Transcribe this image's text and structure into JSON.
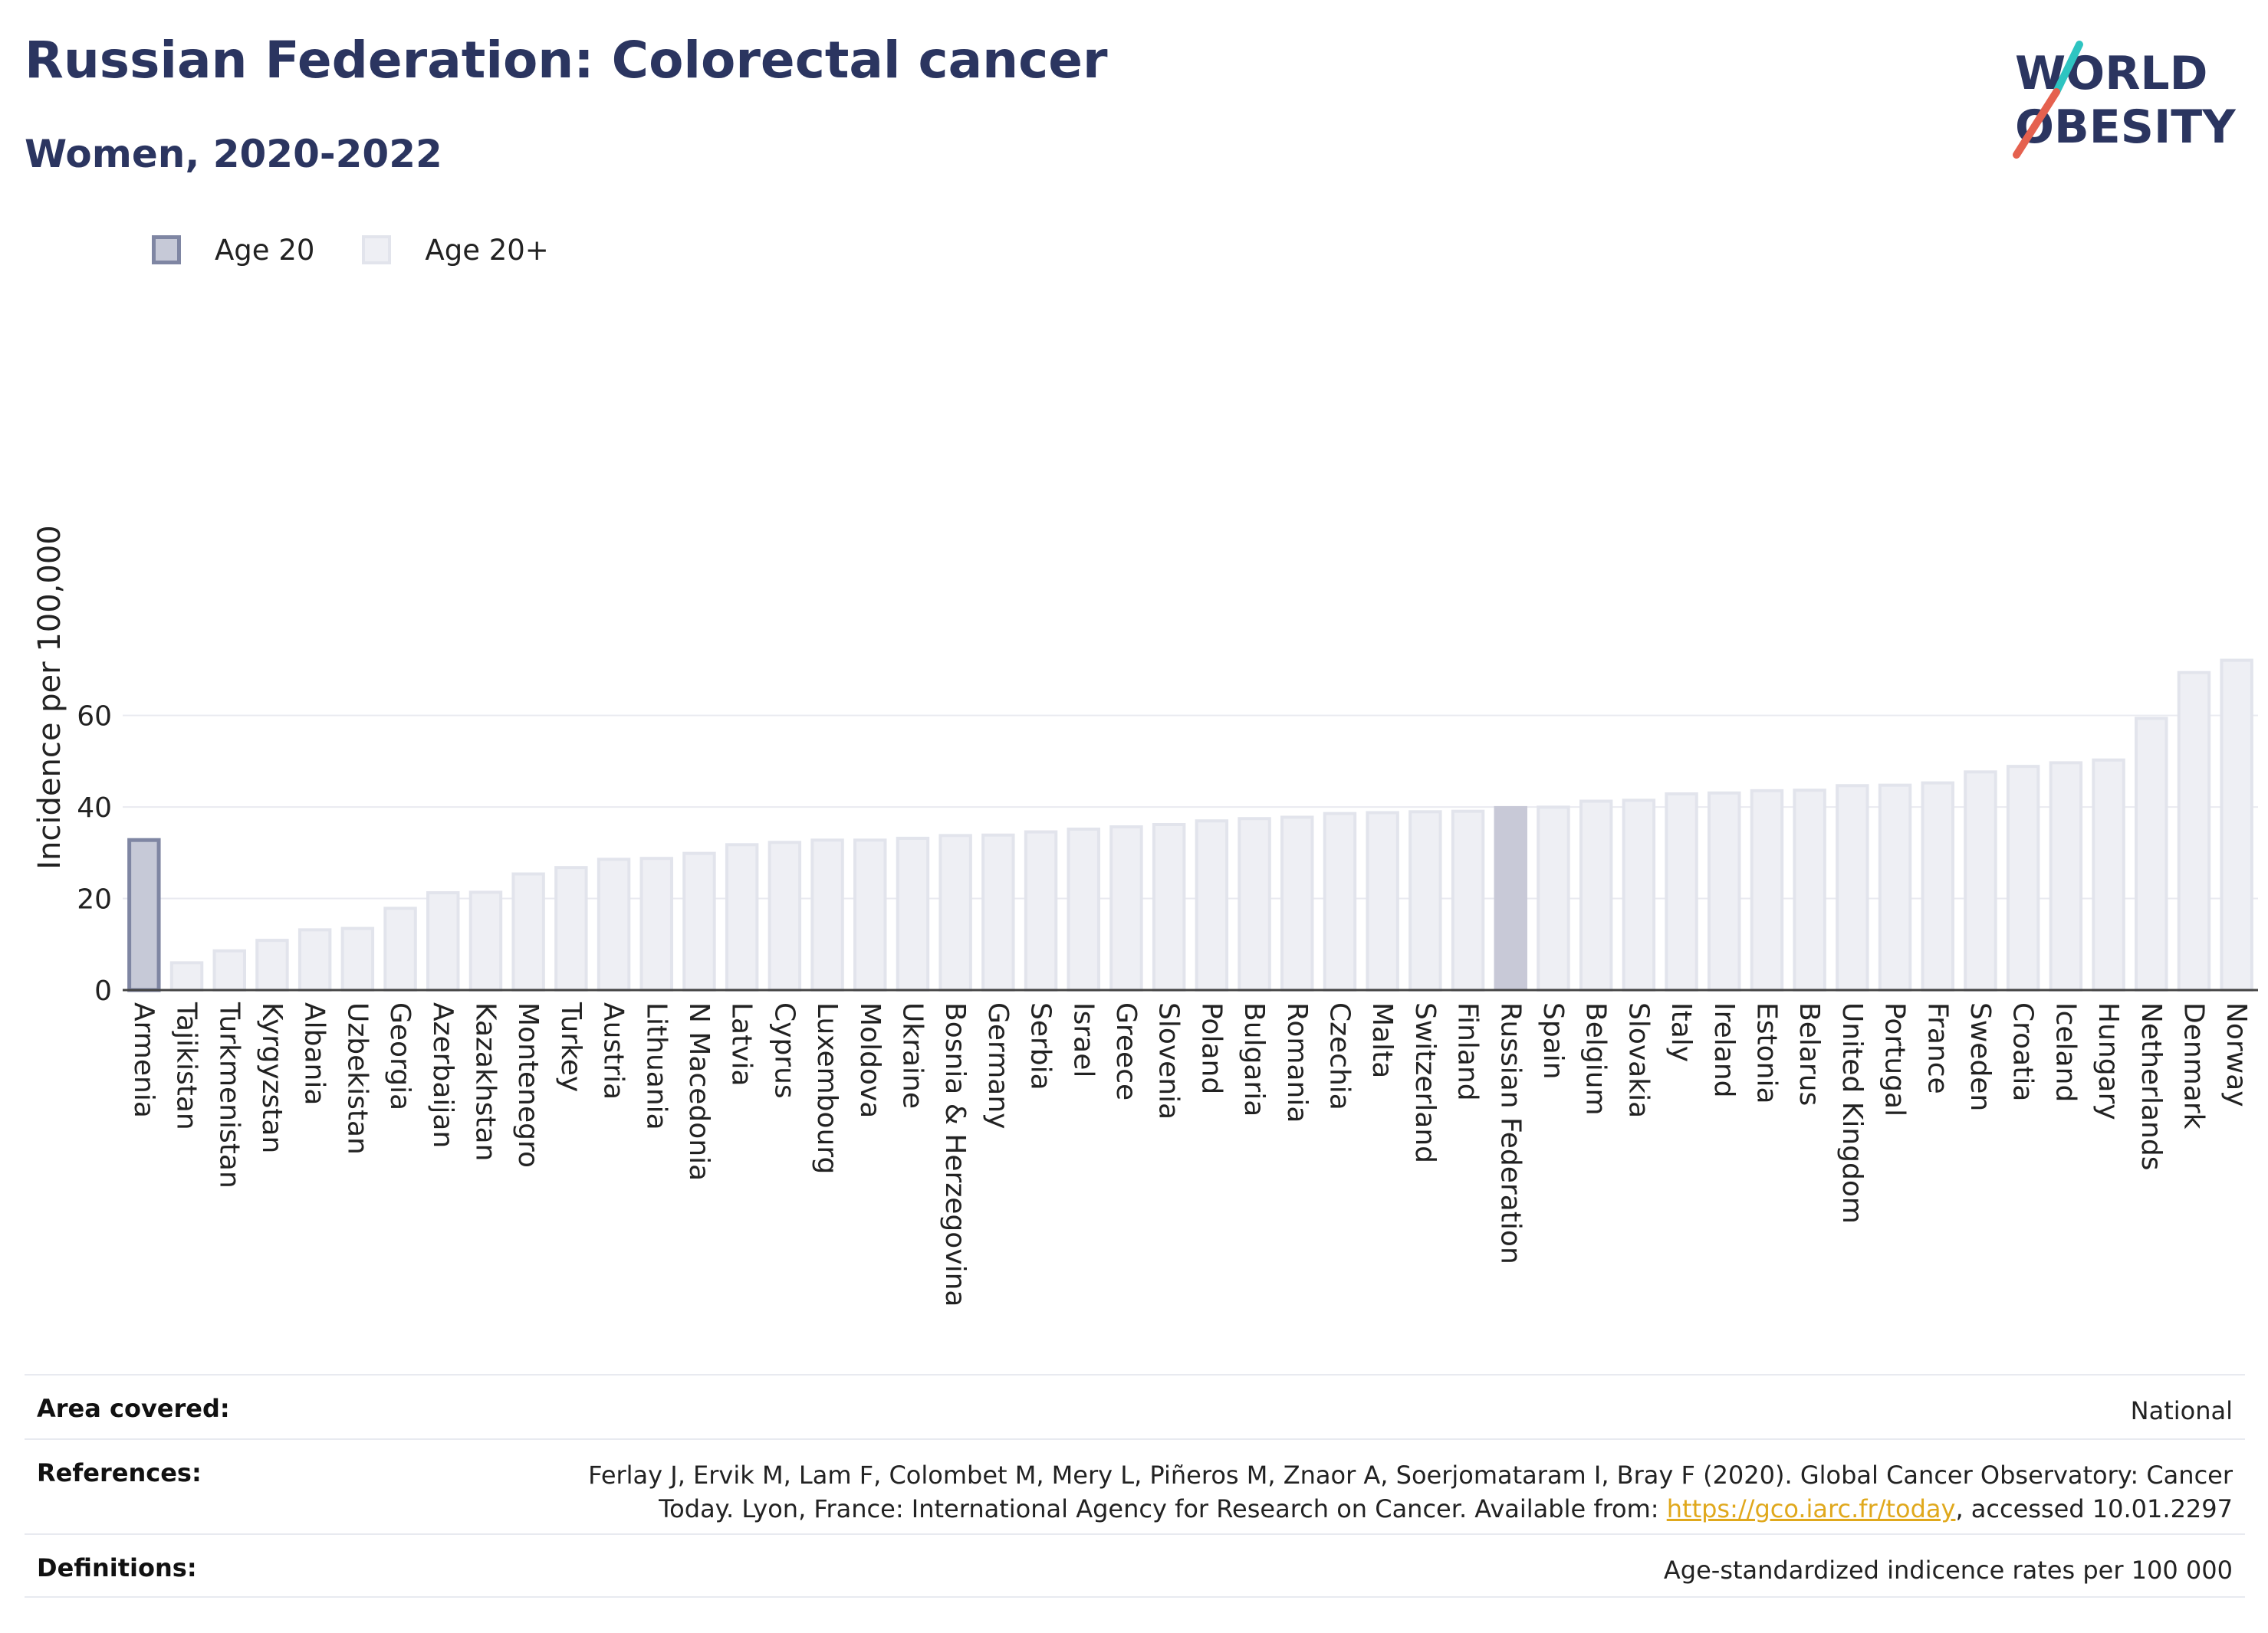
{
  "header": {
    "title": "Russian Federation: Colorectal cancer",
    "subtitle": "Women, 2020-2022"
  },
  "logo": {
    "line1": "WORLD",
    "line2": "OBESITY",
    "accent_colors": [
      "#2ec4c1",
      "#e5614f"
    ],
    "text_color": "#2b3560"
  },
  "legend": {
    "items": [
      {
        "label": "Age 20",
        "fill": "#c6c9d7",
        "border": "#7f86a3"
      },
      {
        "label": "Age 20+",
        "fill": "#eeeff4",
        "border": "#e2e4ec"
      }
    ]
  },
  "chart_data": {
    "type": "bar",
    "title": "",
    "xlabel": "",
    "ylabel": "Incidence per 100,000",
    "ylim": [
      0,
      73
    ],
    "yticks": [
      0,
      20,
      40,
      60
    ],
    "grid": true,
    "legend_position": "top-left",
    "highlight": "Russian Federation",
    "colors": {
      "age20_fill": "#c6c9d7",
      "age20_border": "#7f86a3",
      "age20plus_fill": "#eeeff4",
      "age20plus_border": "#e2e4ec",
      "highlight_fill": "#c8c9d7"
    },
    "categories": [
      "Armenia",
      "Tajikistan",
      "Turkmenistan",
      "Kyrgyzstan",
      "Albania",
      "Uzbekistan",
      "Georgia",
      "Azerbaijan",
      "Kazakhstan",
      "Montenegro",
      "Turkey",
      "Austria",
      "Lithuania",
      "N Macedonia",
      "Latvia",
      "Cyprus",
      "Luxembourg",
      "Moldova",
      "Ukraine",
      "Bosnia & Herzegovina",
      "Germany",
      "Serbia",
      "Israel",
      "Greece",
      "Slovenia",
      "Poland",
      "Bulgaria",
      "Romania",
      "Czechia",
      "Malta",
      "Switzerland",
      "Finland",
      "Russian Federation",
      "Spain",
      "Belgium",
      "Slovakia",
      "Italy",
      "Ireland",
      "Estonia",
      "Belarus",
      "United Kingdom",
      "Portugal",
      "France",
      "Sweden",
      "Croatia",
      "Iceland",
      "Hungary",
      "Netherlands",
      "Denmark",
      "Norway"
    ],
    "groups": [
      "Age 20",
      "Age 20+",
      "Age 20+",
      "Age 20+",
      "Age 20+",
      "Age 20+",
      "Age 20+",
      "Age 20+",
      "Age 20+",
      "Age 20+",
      "Age 20+",
      "Age 20+",
      "Age 20+",
      "Age 20+",
      "Age 20+",
      "Age 20+",
      "Age 20+",
      "Age 20+",
      "Age 20+",
      "Age 20+",
      "Age 20+",
      "Age 20+",
      "Age 20+",
      "Age 20+",
      "Age 20+",
      "Age 20+",
      "Age 20+",
      "Age 20+",
      "Age 20+",
      "Age 20+",
      "Age 20+",
      "Age 20+",
      "Age 20+",
      "Age 20+",
      "Age 20+",
      "Age 20+",
      "Age 20+",
      "Age 20+",
      "Age 20+",
      "Age 20+",
      "Age 20+",
      "Age 20+",
      "Age 20+",
      "Age 20+",
      "Age 20+",
      "Age 20+",
      "Age 20+",
      "Age 20+",
      "Age 20+",
      "Age 20+"
    ],
    "values": [
      33.2,
      6.3,
      8.9,
      11.2,
      13.5,
      13.8,
      18.2,
      21.6,
      21.7,
      25.7,
      27.1,
      28.9,
      29.1,
      30.2,
      32.1,
      32.6,
      33.1,
      33.1,
      33.5,
      34.1,
      34.2,
      34.9,
      35.5,
      36.0,
      36.5,
      37.3,
      37.8,
      38.1,
      38.9,
      39.1,
      39.3,
      39.4,
      40.2,
      40.3,
      41.6,
      41.8,
      43.2,
      43.4,
      43.9,
      44.0,
      45.0,
      45.1,
      45.6,
      48.0,
      49.2,
      50.0,
      50.6,
      59.7,
      69.7,
      72.4
    ]
  },
  "info": {
    "area_label": "Area covered:",
    "area_value": "National",
    "references_label": "References:",
    "references_text_1": "Ferlay J, Ervik M, Lam F, Colombet M, Mery L, Piñeros M, Znaor A, Soerjomataram I, Bray F (2020). Global Cancer Observatory: Cancer",
    "references_text_2": "Today. Lyon, France: International Agency for Research on Cancer. Available from: ",
    "references_link": "https://gco.iarc.fr/today",
    "references_text_3": ", accessed 10.01.2297",
    "definitions_label": "Definitions:",
    "definitions_value": "Age-standardized indicence rates per 100 000"
  }
}
